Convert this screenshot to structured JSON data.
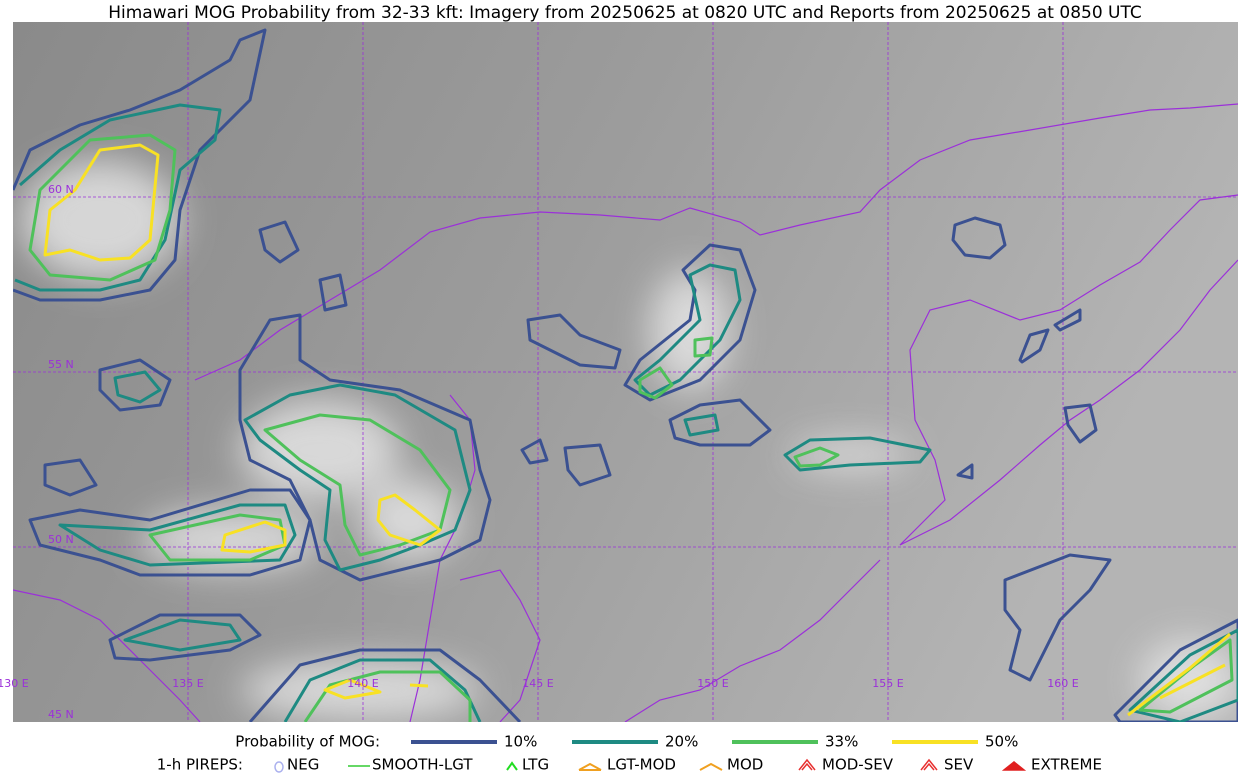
{
  "header": {
    "title": "Himawari MOG Probability from 32-33 kft: Imagery from 20250625 at 0820 UTC and Reports from 20250625 at 0850 UTC"
  },
  "map": {
    "lat_labels": [
      "60 N",
      "55 N",
      "50 N",
      "45 N"
    ],
    "lon_labels": [
      "130 E",
      "135 E",
      "140 E",
      "145 E",
      "150 E",
      "155 E",
      "160 E"
    ]
  },
  "legend": {
    "title": "Probability of MOG:",
    "levels": [
      {
        "label": "10%",
        "color": "#3b5191"
      },
      {
        "label": "20%",
        "color": "#1e8a82"
      },
      {
        "label": "33%",
        "color": "#4fc15b"
      },
      {
        "label": "50%",
        "color": "#f8e124"
      }
    ]
  },
  "pireps": {
    "title": "1-h PIREPS:",
    "items": [
      "NEG",
      "SMOOTH-LGT",
      "LTG",
      "LGT-MOD",
      "MOD",
      "MOD-SEV",
      "SEV",
      "EXTREME"
    ]
  }
}
